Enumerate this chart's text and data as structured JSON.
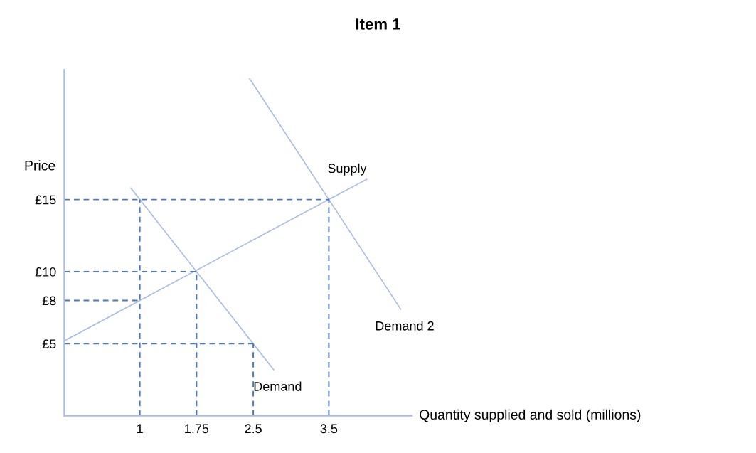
{
  "chart_data": {
    "type": "line",
    "title": "Item 1",
    "xlabel": "Quantity supplied and sold (millions)",
    "ylabel": "Price",
    "xlim": [
      0,
      4.6
    ],
    "ylim": [
      0,
      24
    ],
    "xticks": [
      1,
      1.75,
      2.5,
      3.5
    ],
    "yticks": [
      {
        "value": 5,
        "label": "£5"
      },
      {
        "value": 8,
        "label": "£8"
      },
      {
        "value": 10,
        "label": "£10"
      },
      {
        "value": 15,
        "label": "£15"
      }
    ],
    "grid": false,
    "marker": "none",
    "series": [
      {
        "name": "Supply",
        "color": "#a9bde6",
        "line_style": "solid",
        "x": [
          0,
          1,
          3.5,
          4
        ],
        "values": [
          5.2,
          8,
          15,
          16.4
        ]
      },
      {
        "name": "Demand",
        "color": "#a9bde6",
        "line_style": "solid",
        "x": [
          0.88,
          1,
          1.75,
          2.5,
          2.77
        ],
        "values": [
          15.8,
          15,
          10,
          5,
          3.2
        ]
      },
      {
        "name": "Demand 2",
        "color": "#a9bde6",
        "line_style": "solid",
        "x": [
          2.45,
          3.5,
          4.45
        ],
        "values": [
          23.4,
          15,
          7.4
        ]
      },
      {
        "color": "#4a78c8",
        "line_style": "dashed",
        "x": [
          0,
          3.5
        ],
        "values": [
          15,
          15
        ]
      },
      {
        "color": "#4a78c8",
        "line_style": "dashed",
        "x": [
          1,
          1
        ],
        "values": [
          0,
          15
        ]
      },
      {
        "color": "#4a78c8",
        "line_style": "dashed",
        "x": [
          0,
          1.75
        ],
        "values": [
          10,
          10
        ]
      },
      {
        "color": "#4a78c8",
        "line_style": "dashed",
        "x": [
          1.75,
          1.75
        ],
        "values": [
          0,
          10
        ]
      },
      {
        "color": "#4a78c8",
        "line_style": "dashed",
        "x": [
          0,
          1
        ],
        "values": [
          8,
          8
        ]
      },
      {
        "color": "#4a78c8",
        "line_style": "dashed",
        "x": [
          0,
          2.5
        ],
        "values": [
          5,
          5
        ]
      },
      {
        "color": "#4a78c8",
        "line_style": "dashed",
        "x": [
          2.5,
          2.5
        ],
        "values": [
          0,
          5
        ]
      },
      {
        "color": "#4a78c8",
        "line_style": "dashed",
        "x": [
          3.5,
          3.5
        ],
        "values": [
          0,
          15
        ]
      }
    ]
  }
}
